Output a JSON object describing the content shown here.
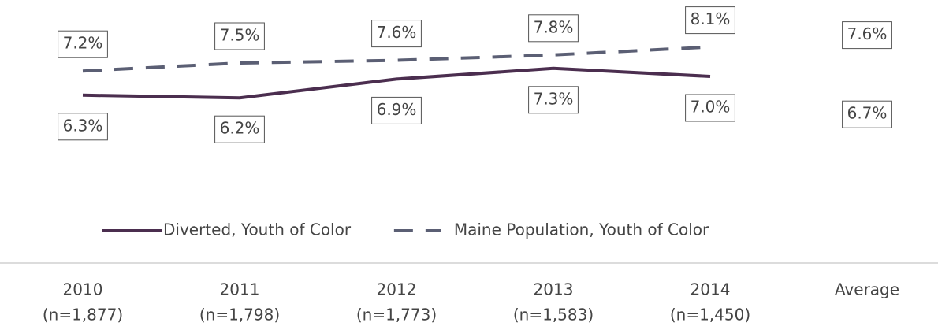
{
  "chart_data": {
    "type": "line",
    "categories": [
      "2010",
      "2011",
      "2012",
      "2013",
      "2014"
    ],
    "category_counts": [
      "(n=1,877)",
      "(n=1,798)",
      "(n=1,773)",
      "(n=1,583)",
      "(n=1,450)"
    ],
    "average_label": "Average",
    "ylim": [
      5,
      9
    ],
    "legend": "bottom",
    "series": [
      {
        "name": "Diverted, Youth of Color",
        "color": "#4b2e4f",
        "dash": false,
        "values": [
          6.3,
          6.2,
          6.9,
          7.3,
          7.0
        ],
        "value_labels": [
          "6.3%",
          "6.2%",
          "6.9%",
          "7.3%",
          "7.0%"
        ],
        "average": 6.7,
        "average_value_label": "6.7%"
      },
      {
        "name": "Maine Population, Youth of Color",
        "color": "#5b5f74",
        "dash": true,
        "values": [
          7.2,
          7.5,
          7.6,
          7.8,
          8.1
        ],
        "value_labels": [
          "7.2%",
          "7.5%",
          "7.6%",
          "7.8%",
          "8.1%"
        ],
        "average": 7.6,
        "average_value_label": "7.6%"
      }
    ]
  }
}
